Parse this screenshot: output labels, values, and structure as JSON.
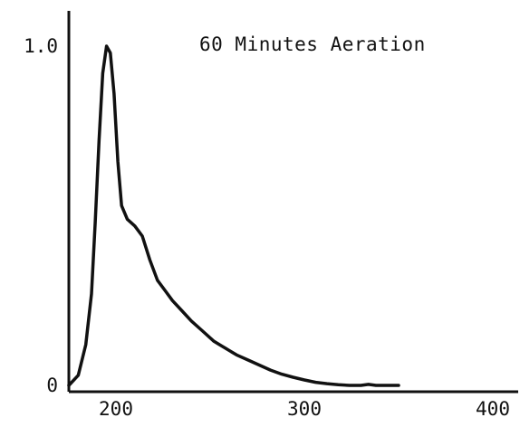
{
  "chart_data": {
    "type": "line",
    "title": "60 Minutes Aeration",
    "xlabel": "",
    "ylabel": "",
    "xlim": [
      175,
      400
    ],
    "ylim": [
      0,
      1.0
    ],
    "x_ticks": [
      {
        "value": 200,
        "label": "200"
      },
      {
        "value": 300,
        "label": "300"
      },
      {
        "value": 400,
        "label": "400"
      }
    ],
    "y_ticks": [
      {
        "value": 0,
        "label": "0"
      },
      {
        "value": 1.0,
        "label": "1.0"
      }
    ],
    "grid": false,
    "legend": "none",
    "series": [
      {
        "color": "#111111",
        "x": [
          175,
          180,
          184,
          187,
          189,
          191,
          193,
          195,
          197,
          199,
          201,
          203,
          206,
          210,
          214,
          218,
          222,
          226,
          230,
          235,
          240,
          246,
          252,
          258,
          264,
          270,
          276,
          282,
          288,
          294,
          300,
          306,
          312,
          318,
          324,
          330,
          334,
          338,
          344,
          350
        ],
        "y": [
          0.0,
          0.03,
          0.12,
          0.27,
          0.48,
          0.72,
          0.92,
          1.0,
          0.98,
          0.86,
          0.66,
          0.53,
          0.49,
          0.47,
          0.44,
          0.37,
          0.31,
          0.28,
          0.25,
          0.22,
          0.19,
          0.16,
          0.13,
          0.11,
          0.09,
          0.075,
          0.06,
          0.045,
          0.033,
          0.024,
          0.016,
          0.009,
          0.005,
          0.002,
          0.0,
          0.0,
          0.003,
          0.0,
          0.0,
          0.0
        ]
      }
    ]
  }
}
